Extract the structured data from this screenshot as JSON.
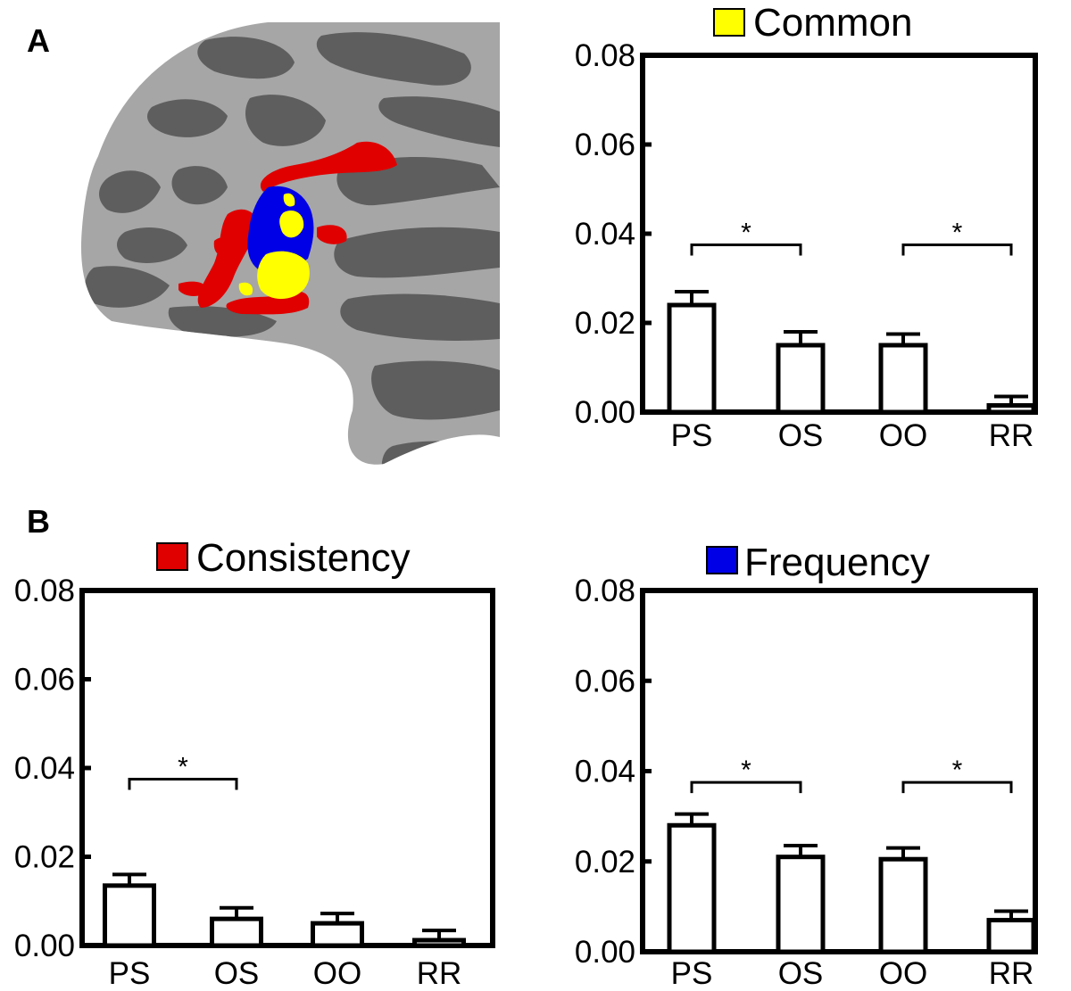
{
  "panels": {
    "a": "A",
    "b": "B"
  },
  "brain": {
    "colors": {
      "cortex_light": "#a6a6a6",
      "cortex_dark": "#5e5e5e",
      "consistency": "#e00000",
      "frequency": "#0000e6",
      "common": "#ffff00"
    }
  },
  "chart_data": [
    {
      "type": "bar",
      "title": "Common",
      "legend_color": "#ffff00",
      "categories": [
        "PS",
        "OS",
        "OO",
        "RR"
      ],
      "values": [
        0.024,
        0.015,
        0.015,
        0.0015
      ],
      "errors": [
        0.003,
        0.003,
        0.0025,
        0.002
      ],
      "ylim": [
        0,
        0.08
      ],
      "yticks": [
        "0.00",
        "0.02",
        "0.04",
        "0.06",
        "0.08"
      ],
      "significance": [
        {
          "from": 0,
          "to": 1,
          "y": 0.0375,
          "label": "*"
        },
        {
          "from": 2,
          "to": 3,
          "y": 0.0375,
          "label": "*"
        }
      ]
    },
    {
      "type": "bar",
      "title": "Consistency",
      "legend_color": "#e00000",
      "categories": [
        "PS",
        "OS",
        "OO",
        "RR"
      ],
      "values": [
        0.0135,
        0.006,
        0.005,
        0.0012
      ],
      "errors": [
        0.0025,
        0.0025,
        0.0022,
        0.0022
      ],
      "ylim": [
        0,
        0.08
      ],
      "yticks": [
        "0.00",
        "0.02",
        "0.04",
        "0.06",
        "0.08"
      ],
      "significance": [
        {
          "from": 0,
          "to": 1,
          "y": 0.0375,
          "label": "*"
        }
      ]
    },
    {
      "type": "bar",
      "title": "Frequency",
      "legend_color": "#0000e6",
      "categories": [
        "PS",
        "OS",
        "OO",
        "RR"
      ],
      "values": [
        0.028,
        0.021,
        0.0205,
        0.007
      ],
      "errors": [
        0.0025,
        0.0025,
        0.0025,
        0.002
      ],
      "ylim": [
        0,
        0.08
      ],
      "yticks": [
        "0.00",
        "0.02",
        "0.04",
        "0.06",
        "0.08"
      ],
      "significance": [
        {
          "from": 0,
          "to": 1,
          "y": 0.0375,
          "label": "*"
        },
        {
          "from": 2,
          "to": 3,
          "y": 0.0375,
          "label": "*"
        }
      ]
    }
  ]
}
